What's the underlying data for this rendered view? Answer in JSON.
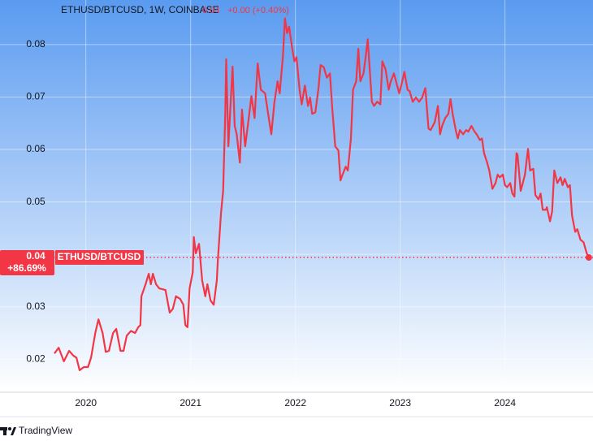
{
  "chart_data": {
    "type": "line",
    "title": "ETHUSD/BTCUSD, 1W, COINBASE",
    "last_price": 0.04,
    "price_change": "+0.00 (+0.40%)",
    "percent_change": "+86.69%",
    "brand": "TradingView",
    "x": [
      2019.7,
      2019.74,
      2019.79,
      2019.84,
      2019.88,
      2019.91,
      2019.94,
      2019.98,
      2020.02,
      2020.05,
      2020.09,
      2020.12,
      2020.16,
      2020.19,
      2020.22,
      2020.26,
      2020.29,
      2020.33,
      2020.36,
      2020.39,
      2020.43,
      2020.47,
      2020.5,
      2020.52,
      2020.53,
      2020.57,
      2020.6,
      2020.62,
      2020.64,
      2020.67,
      2020.7,
      2020.76,
      2020.8,
      2020.83,
      2020.86,
      2020.9,
      2020.93,
      2020.95,
      2020.97,
      2020.99,
      2021.02,
      2021.03,
      2021.05,
      2021.08,
      2021.11,
      2021.14,
      2021.16,
      2021.19,
      2021.22,
      2021.25,
      2021.26,
      2021.29,
      2021.31,
      2021.33,
      2021.34,
      2021.36,
      2021.4,
      2021.42,
      2021.44,
      2021.47,
      2021.49,
      2021.52,
      2021.55,
      2021.58,
      2021.61,
      2021.64,
      2021.67,
      2021.71,
      2021.74,
      2021.77,
      2021.8,
      2021.83,
      2021.85,
      2021.88,
      2021.9,
      2021.92,
      2021.94,
      2021.97,
      2021.99,
      2022.01,
      2022.04,
      2022.06,
      2022.09,
      2022.12,
      2022.14,
      2022.16,
      2022.19,
      2022.22,
      2022.24,
      2022.27,
      2022.3,
      2022.33,
      2022.35,
      2022.38,
      2022.41,
      2022.43,
      2022.45,
      2022.48,
      2022.5,
      2022.53,
      2022.55,
      2022.58,
      2022.6,
      2022.62,
      2022.65,
      2022.67,
      2022.69,
      2022.73,
      2022.75,
      2022.78,
      2022.81,
      2022.83,
      2022.86,
      2022.89,
      2022.91,
      2022.94,
      2022.96,
      2022.99,
      2023.02,
      2023.04,
      2023.07,
      2023.09,
      2023.12,
      2023.15,
      2023.18,
      2023.21,
      2023.24,
      2023.27,
      2023.29,
      2023.33,
      2023.36,
      2023.38,
      2023.4,
      2023.43,
      2023.46,
      2023.48,
      2023.5,
      2023.53,
      2023.55,
      2023.57,
      2023.6,
      2023.63,
      2023.65,
      2023.68,
      2023.71,
      2023.73,
      2023.76,
      2023.78,
      2023.8,
      2023.83,
      2023.85,
      2023.88,
      2023.91,
      2023.93,
      2023.95,
      2023.98,
      2024.0,
      2024.02,
      2024.05,
      2024.07,
      2024.09,
      2024.11,
      2024.12,
      2024.15,
      2024.17,
      2024.19,
      2024.22,
      2024.24,
      2024.27,
      2024.29,
      2024.32,
      2024.34,
      2024.36,
      2024.39,
      2024.4,
      2024.43,
      2024.45,
      2024.47,
      2024.5,
      2024.53,
      2024.55,
      2024.57,
      2024.6,
      2024.62,
      2024.64,
      2024.67,
      2024.69,
      2024.72,
      2024.75,
      2024.78,
      2024.8
    ],
    "series": [
      {
        "name": "ETHUSD/BTCUSD",
        "color": "#f23645",
        "values": [
          0.0211,
          0.0222,
          0.0196,
          0.0216,
          0.0207,
          0.0203,
          0.0179,
          0.0185,
          0.0185,
          0.0203,
          0.025,
          0.0276,
          0.025,
          0.0214,
          0.0216,
          0.025,
          0.0258,
          0.0216,
          0.0216,
          0.0245,
          0.0254,
          0.025,
          0.0261,
          0.0265,
          0.032,
          0.0343,
          0.0363,
          0.0343,
          0.0363,
          0.0343,
          0.0335,
          0.0332,
          0.0289,
          0.0296,
          0.032,
          0.0315,
          0.0304,
          0.0265,
          0.0261,
          0.0335,
          0.0366,
          0.0433,
          0.0402,
          0.042,
          0.035,
          0.032,
          0.0343,
          0.0312,
          0.0304,
          0.035,
          0.0389,
          0.0479,
          0.0521,
          0.0668,
          0.0772,
          0.0606,
          0.0758,
          0.0645,
          0.0629,
          0.0575,
          0.0676,
          0.0606,
          0.0652,
          0.0702,
          0.066,
          0.0764,
          0.0714,
          0.0707,
          0.0668,
          0.0629,
          0.0691,
          0.073,
          0.0707,
          0.0776,
          0.085,
          0.0822,
          0.0834,
          0.0792,
          0.0768,
          0.0776,
          0.0714,
          0.0686,
          0.0722,
          0.0683,
          0.0699,
          0.0668,
          0.0671,
          0.0717,
          0.0761,
          0.0757,
          0.0737,
          0.0745,
          0.0683,
          0.0606,
          0.0598,
          0.0541,
          0.0552,
          0.0567,
          0.056,
          0.0621,
          0.0714,
          0.073,
          0.0792,
          0.073,
          0.0745,
          0.0776,
          0.081,
          0.0691,
          0.0683,
          0.0691,
          0.0686,
          0.0768,
          0.0753,
          0.0714,
          0.073,
          0.0745,
          0.073,
          0.0707,
          0.073,
          0.0748,
          0.0714,
          0.0711,
          0.0691,
          0.0699,
          0.0691,
          0.0699,
          0.0717,
          0.064,
          0.0637,
          0.0652,
          0.0683,
          0.0629,
          0.0645,
          0.066,
          0.0668,
          0.0696,
          0.0668,
          0.0637,
          0.0621,
          0.0637,
          0.0629,
          0.0637,
          0.0634,
          0.0645,
          0.0634,
          0.0629,
          0.0618,
          0.0621,
          0.0593,
          0.0575,
          0.056,
          0.0525,
          0.0536,
          0.0552,
          0.0547,
          0.0552,
          0.0532,
          0.0528,
          0.0536,
          0.0516,
          0.051,
          0.0593,
          0.059,
          0.0521,
          0.0536,
          0.0552,
          0.0601,
          0.056,
          0.0563,
          0.0513,
          0.0505,
          0.0516,
          0.0485,
          0.0485,
          0.049,
          0.0463,
          0.0482,
          0.056,
          0.0536,
          0.0547,
          0.0532,
          0.0544,
          0.0528,
          0.0532,
          0.0474,
          0.0443,
          0.0448,
          0.0428,
          0.0423,
          0.0402,
          0.0394
        ]
      }
    ],
    "xlim": [
      2019.7,
      2024.84
    ],
    "xticks": [
      2020,
      2021,
      2022,
      2023,
      2024
    ],
    "ylim": [
      0.0137,
      0.0885
    ],
    "yticks": [
      0.02,
      0.03,
      0.04,
      0.05,
      0.06,
      0.07,
      0.08
    ],
    "grid": true
  }
}
